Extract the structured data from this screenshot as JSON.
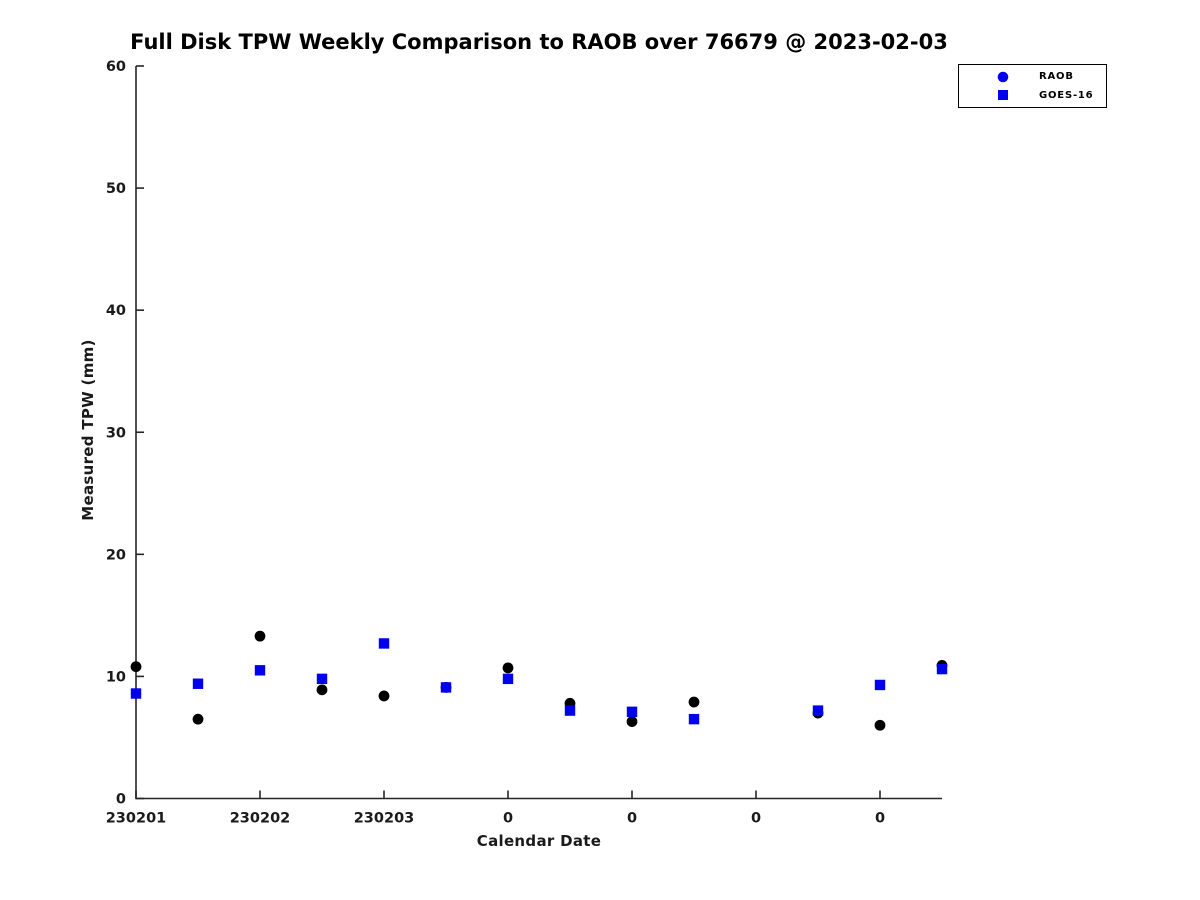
{
  "chart_data": {
    "type": "scatter",
    "title": "Full Disk TPW Weekly Comparison to RAOB over 76679 @ 2023-02-03",
    "xlabel": "Calendar Date",
    "ylabel": "Measured TPW (mm)",
    "xlim": [
      1,
      7.5
    ],
    "ylim": [
      0,
      60
    ],
    "grid": false,
    "axis_color": "#262626",
    "xtick_positions": [
      1,
      2,
      3,
      4,
      5,
      6,
      7
    ],
    "xtick_labels": [
      "230201",
      "230202",
      "230203",
      "0",
      "0",
      "0",
      "0"
    ],
    "ytick_values": [
      0,
      10,
      20,
      30,
      40,
      50,
      60
    ],
    "ytick_labels": [
      "0",
      "10",
      "20",
      "30",
      "40",
      "50",
      "60"
    ],
    "legend": {
      "position": "top-right",
      "entries": [
        {
          "label": "RAOB",
          "marker": "circle",
          "color": "#0000ee"
        },
        {
          "label": "GOES-16",
          "marker": "square",
          "color": "#0000ee"
        }
      ]
    },
    "series": [
      {
        "name": "RAOB",
        "marker": "circle",
        "color": "#000000",
        "x": [
          1,
          1.5,
          2,
          2.5,
          3,
          3.5,
          4,
          4.5,
          5,
          5.5,
          6.5,
          7,
          7.5
        ],
        "y": [
          10.8,
          6.5,
          13.3,
          8.9,
          8.4,
          9.1,
          10.7,
          7.8,
          6.3,
          7.9,
          7.0,
          6.0,
          10.9
        ]
      },
      {
        "name": "GOES-16",
        "marker": "square",
        "color": "#0000ee",
        "x": [
          1,
          1.5,
          2,
          2.5,
          3,
          3.5,
          4,
          4.5,
          5,
          5.5,
          6.5,
          7,
          7.5
        ],
        "y": [
          8.6,
          9.4,
          10.5,
          9.8,
          12.7,
          9.1,
          9.8,
          7.2,
          7.1,
          6.5,
          7.2,
          9.3,
          10.6
        ]
      }
    ]
  }
}
